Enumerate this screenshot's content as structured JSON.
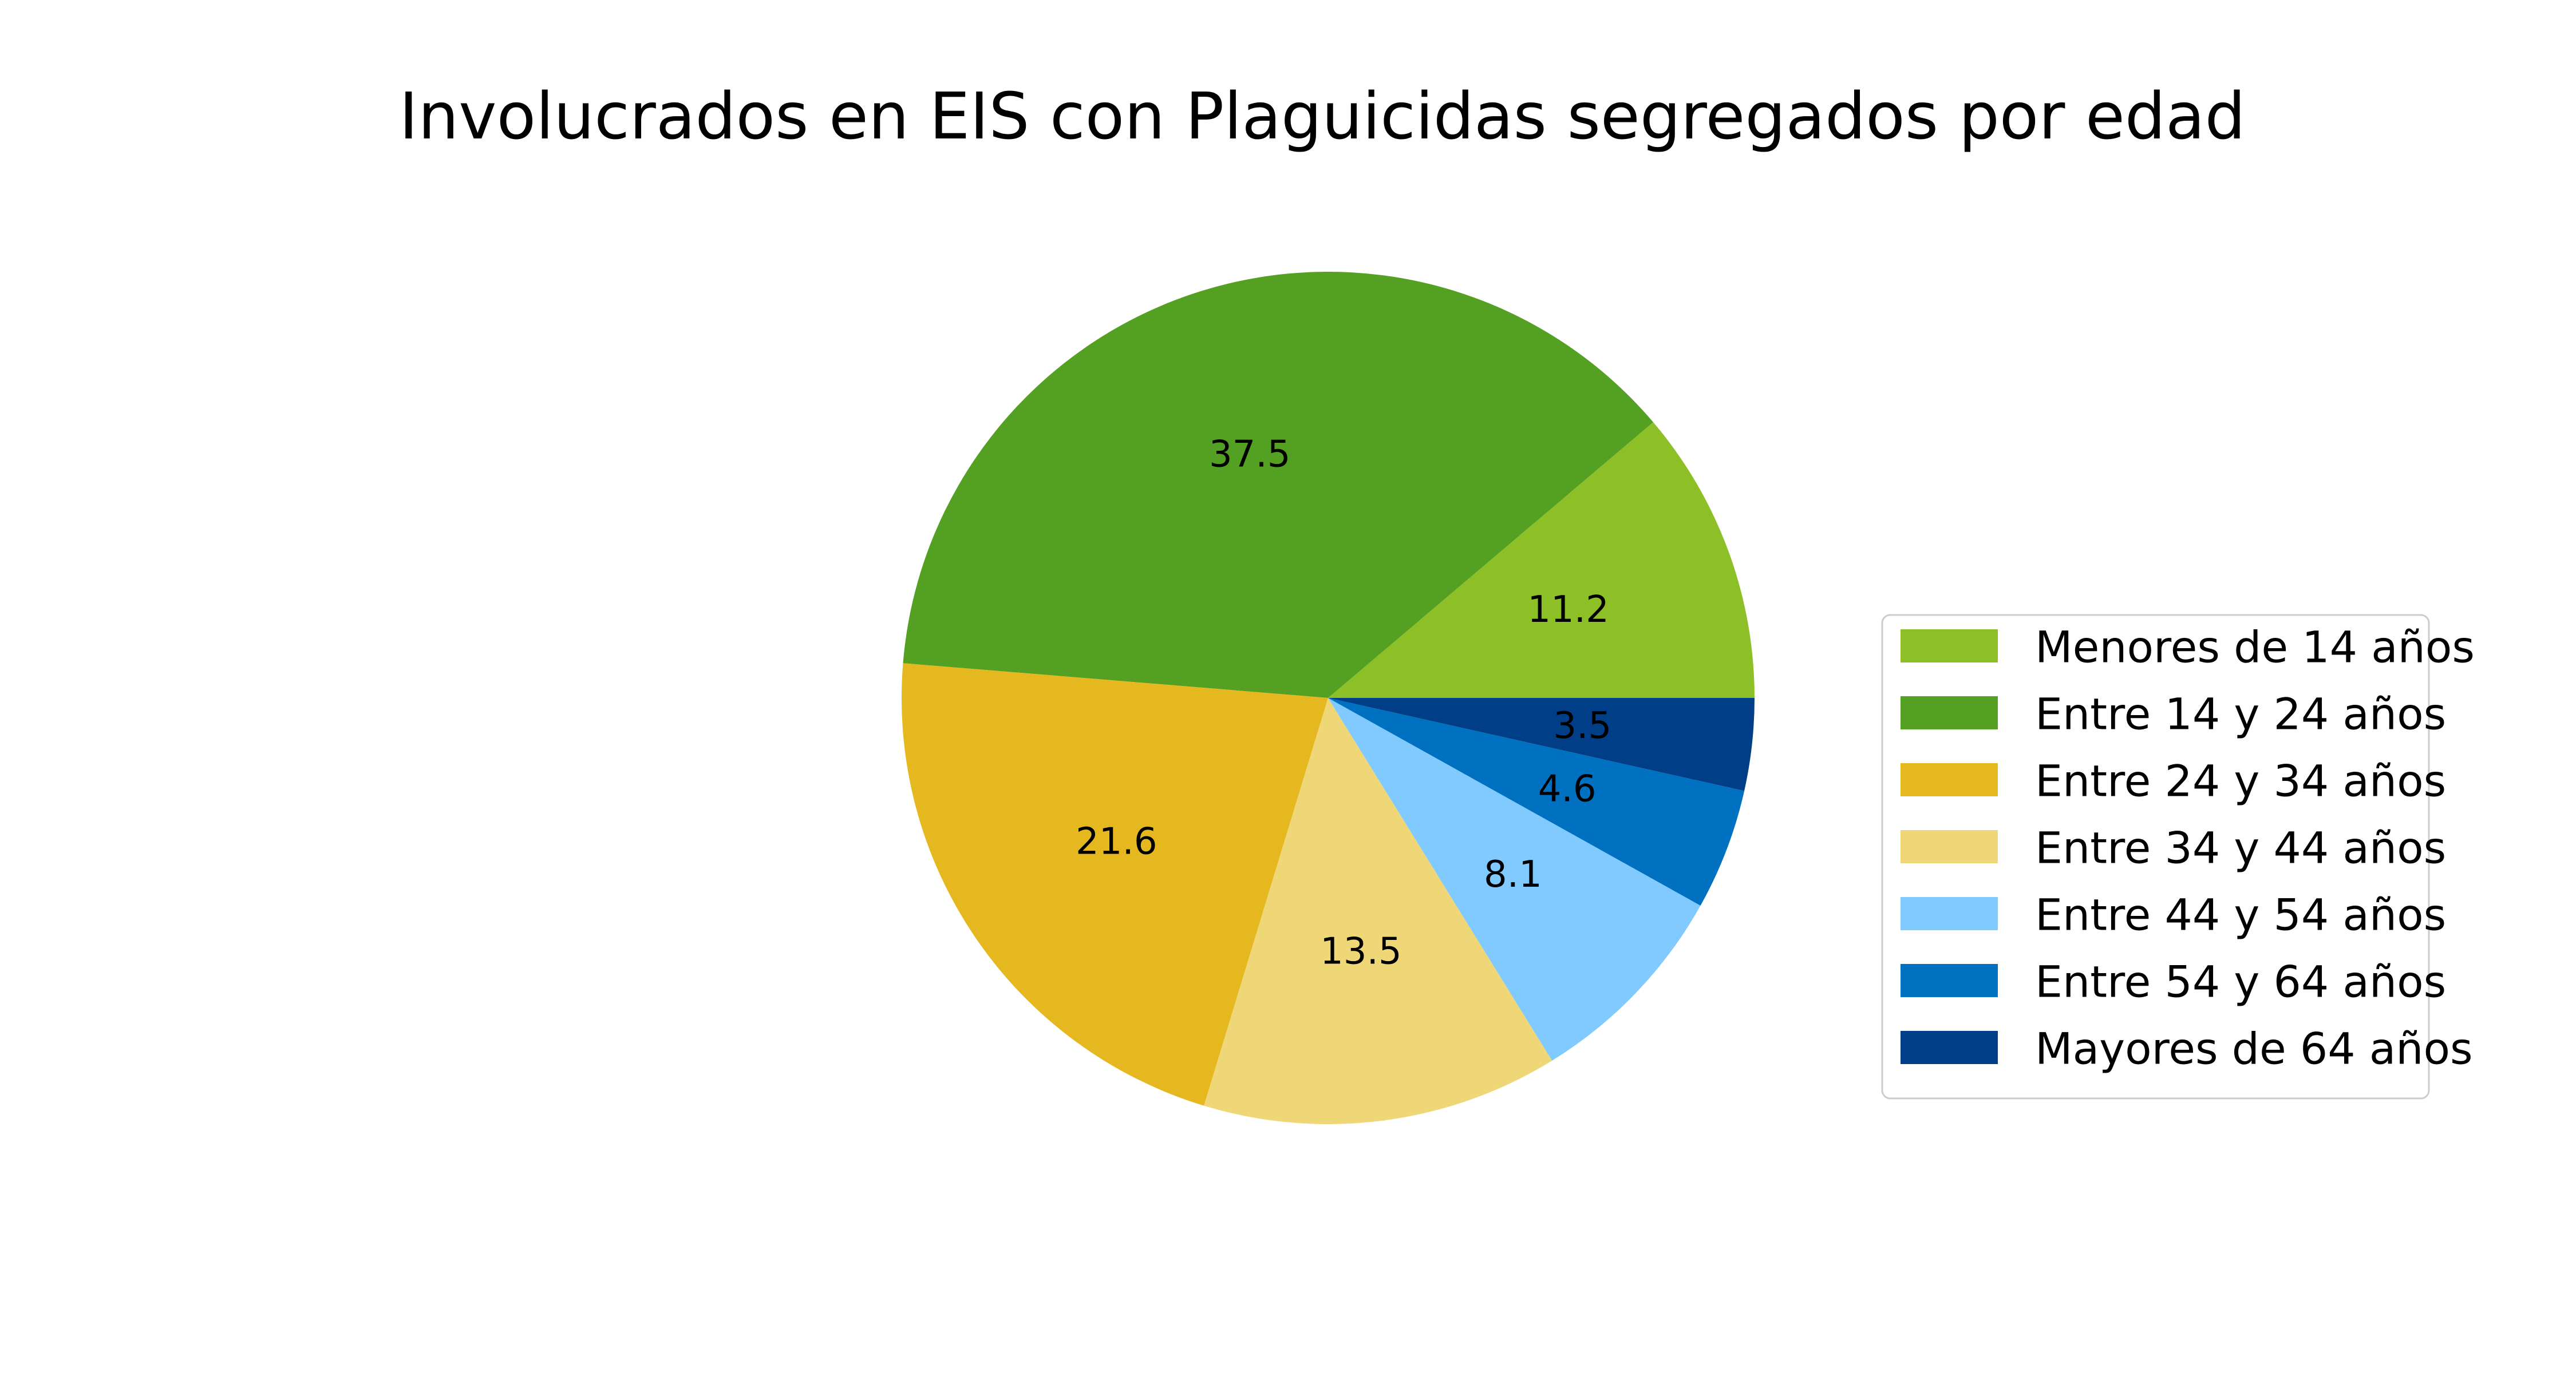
{
  "chart_data": {
    "type": "pie",
    "title": "Involucrados en EIS con Plaguicidas segregados por edad",
    "categories": [
      "Menores de 14 años",
      "Entre 14 y 24 años",
      "Entre 24 y 34 años",
      "Entre 34 y 44 años",
      "Entre 44 y 54 años",
      "Entre 54 y 64 años",
      "Mayores de 64 años"
    ],
    "values": [
      11.2,
      37.5,
      21.6,
      13.5,
      8.1,
      4.6,
      3.5
    ],
    "colors": [
      "#8dc026",
      "#54a022",
      "#e5b820",
      "#efd677",
      "#80caff",
      "#0070c0",
      "#003f87"
    ],
    "value_labels_shown": true,
    "start_angle_deg": 0,
    "direction": "counterclockwise",
    "legend": "right"
  }
}
